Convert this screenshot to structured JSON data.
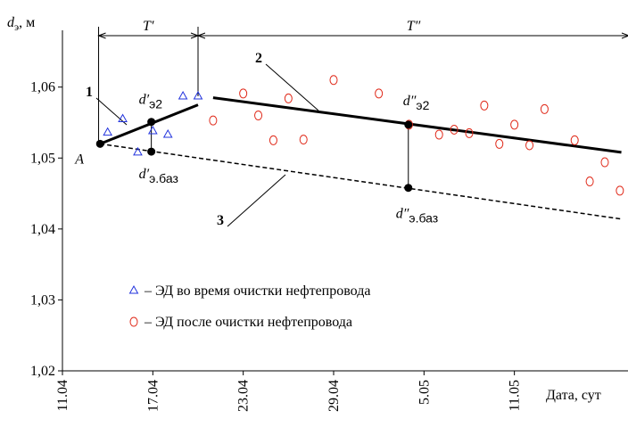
{
  "chart_data": {
    "type": "scatter",
    "ylabel": {
      "symbol": "d",
      "sub": "э",
      "text": ", м"
    },
    "xlabel": "Дата, сут",
    "xlim": [
      0,
      37.6
    ],
    "ylim": [
      1.02,
      1.067
    ],
    "xticks": [
      {
        "value": 0,
        "label": "11.04"
      },
      {
        "value": 6,
        "label": "17.04"
      },
      {
        "value": 12,
        "label": "23.04"
      },
      {
        "value": 18,
        "label": "29.04"
      },
      {
        "value": 24,
        "label": "5.05"
      },
      {
        "value": 30,
        "label": "11.05"
      }
    ],
    "yticks": [
      {
        "value": 1.02,
        "label": "1,02"
      },
      {
        "value": 1.03,
        "label": "1,03"
      },
      {
        "value": 1.04,
        "label": "1,04"
      },
      {
        "value": 1.05,
        "label": "1,05"
      },
      {
        "value": 1.06,
        "label": "1,06"
      }
    ],
    "series": [
      {
        "name": "– ЭД во время очистки нефтепровода",
        "color": "#2233dd",
        "marker": "triangle",
        "x": [
          3,
          4,
          5,
          6,
          7,
          8,
          9
        ],
        "values": [
          1.0536,
          1.0555,
          1.0508,
          1.0538,
          1.0533,
          1.0587,
          1.0587
        ]
      },
      {
        "name": "– ЭД после очистки нефтепровода",
        "color": "#e02a1a",
        "marker": "circle",
        "x": [
          10,
          12,
          13,
          14,
          15,
          16,
          18,
          21,
          23,
          25,
          26,
          27,
          28,
          29,
          30,
          31,
          32,
          34,
          35,
          36,
          37
        ],
        "values": [
          1.0553,
          1.0591,
          1.056,
          1.0525,
          1.0584,
          1.0526,
          1.061,
          1.0591,
          1.0547,
          1.0533,
          1.054,
          1.0535,
          1.0574,
          1.052,
          1.0547,
          1.0518,
          1.0569,
          1.0525,
          1.0467,
          1.0494,
          1.0454
        ]
      }
    ],
    "lines": [
      {
        "label": "1",
        "style": "solid",
        "x": [
          2.5,
          9
        ],
        "values": [
          1.052,
          1.0575
        ]
      },
      {
        "label": "2",
        "style": "solid",
        "x": [
          10,
          37.1
        ],
        "values": [
          1.0585,
          1.0508
        ]
      },
      {
        "label": "3",
        "style": "dashed",
        "x": [
          2.5,
          37.1
        ],
        "values": [
          1.052,
          1.0414
        ]
      }
    ],
    "points": [
      {
        "symbol": "A",
        "x": 2.5,
        "value": 1.052
      },
      {
        "symbol": "d′",
        "sub": "э2",
        "x": 5.9,
        "value": 1.0551
      },
      {
        "symbol": "d′",
        "sub": "э.баз",
        "x": 5.9,
        "value": 1.0509
      },
      {
        "symbol": "d″",
        "sub": "э2",
        "x": 22.96,
        "value": 1.0547
      },
      {
        "symbol": "d″",
        "sub": "э.баз",
        "x": 22.96,
        "value": 1.0458
      }
    ],
    "periods": [
      {
        "label": "T′",
        "x": [
          2.4,
          9
        ]
      },
      {
        "label": "T″",
        "x": [
          9,
          37.6
        ]
      }
    ]
  }
}
